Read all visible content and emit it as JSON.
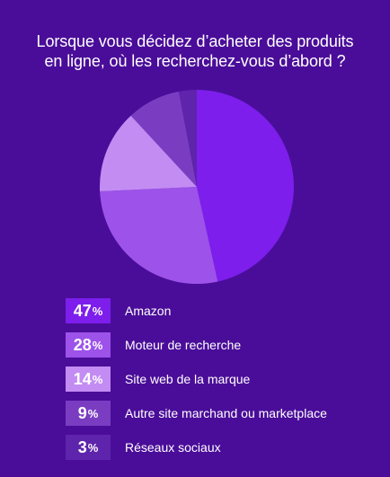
{
  "chart_data": {
    "type": "pie",
    "title_lines": [
      "Lorsque vous décidez d’acheter des produits",
      "en ligne, où les recherchez-vous d’abord ?"
    ],
    "unit": "%",
    "slices": [
      {
        "label": "Amazon",
        "value": 47,
        "color": "#7d1eec"
      },
      {
        "label": "Moteur de recherche",
        "value": 28,
        "color": "#9d52ea"
      },
      {
        "label": "Site web de la marque",
        "value": 14,
        "color": "#c38cf3"
      },
      {
        "label": "Autre site marchand ou marketplace",
        "value": 9,
        "color": "#7a3dc2"
      },
      {
        "label": "Réseaux sociaux",
        "value": 3,
        "color": "#5e24ab"
      }
    ]
  }
}
